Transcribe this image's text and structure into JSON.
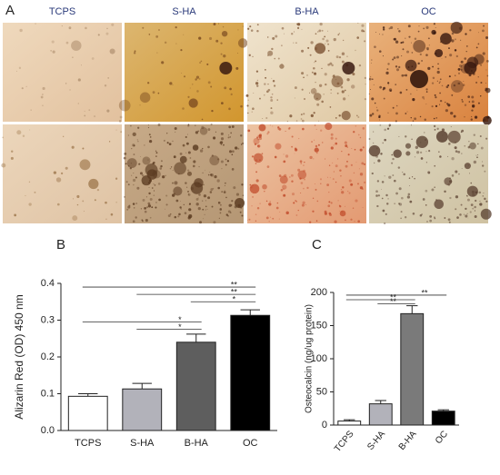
{
  "figure_a": {
    "label": "A",
    "columns": [
      "TCPS",
      "S-HA",
      "B-HA",
      "OC"
    ]
  },
  "chart_data": [
    {
      "type": "bar",
      "label": "B",
      "ylabel": "Alizarin Red (OD) 450 nm",
      "categories": [
        "TCPS",
        "S-HA",
        "B-HA",
        "OC"
      ],
      "values": [
        0.093,
        0.113,
        0.24,
        0.313
      ],
      "errors": [
        0.007,
        0.015,
        0.022,
        0.015
      ],
      "colors": [
        "#ffffff",
        "#b2b2ba",
        "#5e5e5e",
        "#000000"
      ],
      "ylim": [
        0,
        0.4
      ],
      "yticks": [
        {
          "value": 0,
          "label": "0.0"
        },
        0.1,
        0.2,
        0.3,
        0.4
      ],
      "xtick_rotation": 0,
      "significance": [
        {
          "from": "TCPS",
          "to": "OC",
          "y": 0.39,
          "label": "**"
        },
        {
          "from": "S-HA",
          "to": "OC",
          "y": 0.37,
          "label": "**"
        },
        {
          "from": "B-HA",
          "to": "OC",
          "y": 0.35,
          "label": "*"
        },
        {
          "from": "TCPS",
          "to": "B-HA",
          "y": 0.295,
          "label": "*"
        },
        {
          "from": "S-HA",
          "to": "B-HA",
          "y": 0.275,
          "label": "*"
        }
      ]
    },
    {
      "type": "bar",
      "label": "C",
      "ylabel": "Osteocalcin (ng/ug protein)",
      "categories": [
        "TCPS",
        "S-HA",
        "B-HA",
        "OC"
      ],
      "values": [
        6,
        32,
        168,
        21
      ],
      "errors": [
        2,
        5,
        12,
        2
      ],
      "colors": [
        "#ffffff",
        "#b2b2ba",
        "#7a7a7a",
        "#000000"
      ],
      "ylim": [
        0,
        200
      ],
      "yticks": [
        0,
        50,
        100,
        150,
        200
      ],
      "xtick_rotation": -50,
      "significance": [
        {
          "from": "TCPS",
          "to": "OC",
          "y": 196,
          "label": "**"
        },
        {
          "from": "TCPS",
          "to": "B-HA",
          "y": 189,
          "label": "**"
        },
        {
          "from": "S-HA",
          "to": "B-HA",
          "y": 183,
          "label": "**"
        }
      ]
    }
  ]
}
